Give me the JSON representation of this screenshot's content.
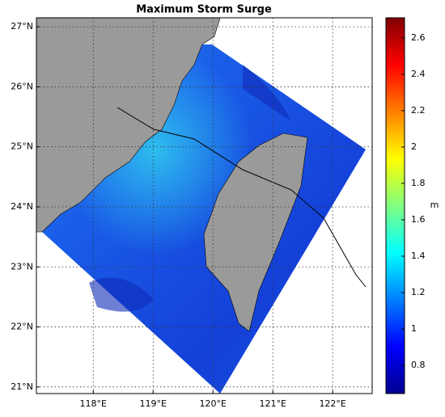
{
  "chart_data": {
    "type": "map",
    "title": "Maximum Storm Surge",
    "xlim": [
      117.05,
      122.66
    ],
    "ylim": [
      20.89,
      27.15
    ],
    "xticks": [
      {
        "value": 118,
        "label": "118°E"
      },
      {
        "value": 119,
        "label": "119°E"
      },
      {
        "value": 120,
        "label": "120°E"
      },
      {
        "value": 121,
        "label": "121°E"
      },
      {
        "value": 122,
        "label": "122°E"
      }
    ],
    "yticks": [
      {
        "value": 21,
        "label": "21°N"
      },
      {
        "value": 22,
        "label": "22°N"
      },
      {
        "value": 23,
        "label": "23°N"
      },
      {
        "value": 24,
        "label": "24°N"
      },
      {
        "value": 25,
        "label": "25°N"
      },
      {
        "value": 26,
        "label": "26°N"
      },
      {
        "value": 27,
        "label": "27°N"
      }
    ],
    "grid": true,
    "colorbar": {
      "label": "m",
      "clim": [
        0.645,
        2.71
      ],
      "ticks": [
        0.8,
        1,
        1.2,
        1.4,
        1.6,
        1.8,
        2,
        2.2,
        2.4,
        2.6
      ],
      "colormap": [
        "#00008f",
        "#0000ff",
        "#0080ff",
        "#00ffff",
        "#80ff80",
        "#ffff00",
        "#ff8000",
        "#ff0000",
        "#800000"
      ]
    }
  }
}
